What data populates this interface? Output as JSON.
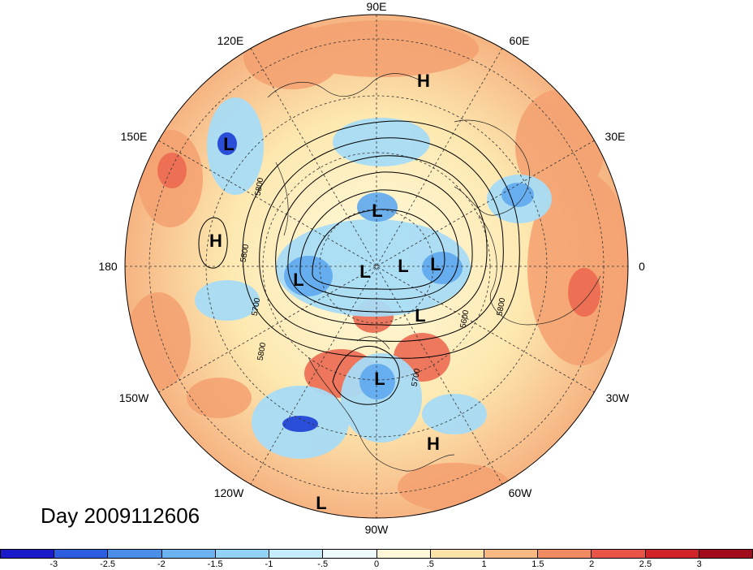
{
  "map": {
    "longitude_labels": [
      "90E",
      "60E",
      "30E",
      "0",
      "30W",
      "60W",
      "90W",
      "120W",
      "150W",
      "180",
      "150E",
      "120E"
    ],
    "pressure_centers": [
      {
        "type": "H",
        "label": "H"
      },
      {
        "type": "L",
        "label": "L"
      },
      {
        "type": "H",
        "label": "H"
      },
      {
        "type": "L",
        "label": "L"
      },
      {
        "type": "L",
        "label": "L"
      },
      {
        "type": "L",
        "label": "L"
      },
      {
        "type": "L",
        "label": "L"
      },
      {
        "type": "L",
        "label": "L"
      },
      {
        "type": "L",
        "label": "L"
      },
      {
        "type": "L",
        "label": "L"
      },
      {
        "type": "H",
        "label": "H"
      },
      {
        "type": "L",
        "label": "L"
      }
    ],
    "contour_labels": [
      "5800",
      "5800",
      "5700",
      "5800",
      "5600",
      "5800",
      "5700"
    ],
    "day_label": "Day 2009112606"
  },
  "colorbar": {
    "ticks": [
      "-3",
      "-2.5",
      "-2",
      "-1.5",
      "-1",
      "-.5",
      "0",
      ".5",
      "1",
      "1.5",
      "2",
      "2.5",
      "3"
    ],
    "colors": [
      "#2020d0",
      "#3a6ee8",
      "#5aa0f0",
      "#80c4f4",
      "#a8e2f8",
      "#d6f4fc",
      "#fffce0",
      "#fde8a8",
      "#f8b880",
      "#f49060",
      "#ec5850",
      "#d42830",
      "#a01020"
    ]
  }
}
